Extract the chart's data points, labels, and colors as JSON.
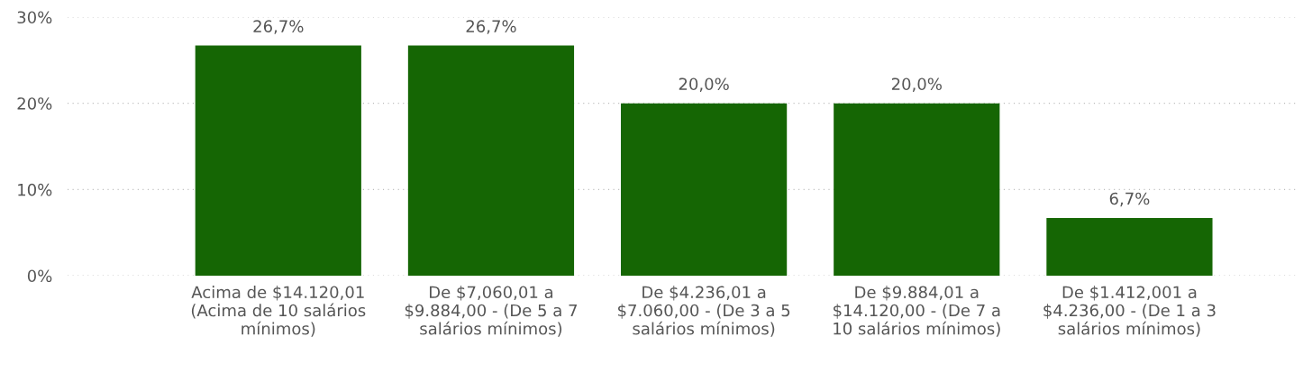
{
  "chart_data": {
    "type": "bar",
    "categories": [
      "Acima de $14.120,01\n(Acima de 10 salários\nmínimos)",
      "De $7,060,01 a\n$9.884,00 - (De 5 a 7\nsalários mínimos)",
      "De $4.236,01 a\n$7.060,00 - (De 3 a 5\nsalários mínimos)",
      "De $9.884,01 a\n$14.120,00 - (De 7 a\n10 salários mínimos)",
      "De $1.412,001 a\n$4.236,00 - (De 1 a 3\nsalários mínimos)"
    ],
    "values": [
      26.7,
      26.7,
      20.0,
      20.0,
      6.7
    ],
    "value_labels": [
      "26,7%",
      "26,7%",
      "20,0%",
      "20,0%",
      "6,7%"
    ],
    "color": "#156604",
    "ylim": [
      0,
      30
    ],
    "yticks": [
      {
        "value": 0,
        "label": "0%"
      },
      {
        "value": 10,
        "label": "10%"
      },
      {
        "value": 20,
        "label": "20%"
      },
      {
        "value": 30,
        "label": "30%"
      }
    ],
    "grid": "y"
  }
}
